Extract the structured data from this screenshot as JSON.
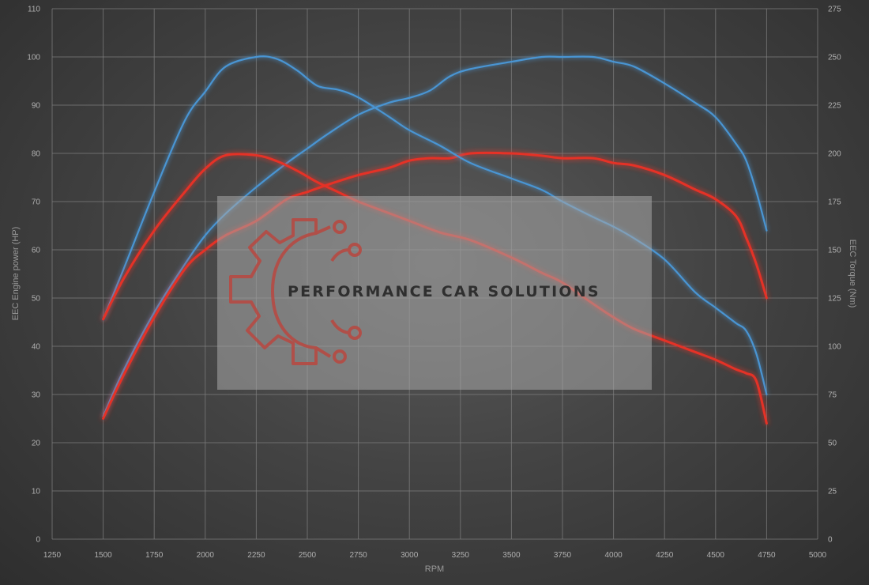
{
  "chart_data": {
    "type": "line",
    "xlabel": "RPM",
    "ylabel_left": "EEC Engine power (HP)",
    "ylabel_right": "EEC Torque (Nm)",
    "xlim": [
      1250,
      5000
    ],
    "ylim_left": [
      0,
      110
    ],
    "ylim_right": [
      0,
      275
    ],
    "x_ticks": [
      "1250",
      "1500",
      "1750",
      "2000",
      "2250",
      "2500",
      "2750",
      "3000",
      "3250",
      "3500",
      "3750",
      "4000",
      "4250",
      "4500",
      "4750",
      "5000"
    ],
    "y_left_ticks": [
      "0",
      "10",
      "20",
      "30",
      "40",
      "50",
      "60",
      "70",
      "80",
      "90",
      "100",
      "110"
    ],
    "y_right_ticks": [
      "0",
      "25",
      "50",
      "75",
      "100",
      "125",
      "150",
      "175",
      "200",
      "225",
      "250",
      "275"
    ],
    "grid": true,
    "series": [
      {
        "axis": "left",
        "color": "#4a95d3",
        "x": [
          1500,
          1600,
          1750,
          1900,
          2000,
          2100,
          2250,
          2400,
          2500,
          2600,
          2750,
          2900,
          3000,
          3100,
          3200,
          3300,
          3500,
          3650,
          3750,
          3900,
          4000,
          4100,
          4250,
          4400,
          4500,
          4600,
          4650,
          4700,
          4750
        ],
        "values": [
          25.5,
          35,
          47,
          57,
          63,
          67.5,
          73,
          78,
          81,
          84,
          88,
          90.5,
          91.5,
          93,
          96,
          97.5,
          99,
          100,
          100,
          100,
          99,
          98,
          94.5,
          90.5,
          87.5,
          82,
          78.5,
          72,
          64
        ]
      },
      {
        "axis": "left",
        "color": "#e53028",
        "x": [
          1500,
          1600,
          1750,
          1900,
          2000,
          2100,
          2250,
          2400,
          2500,
          2600,
          2750,
          2900,
          3000,
          3100,
          3200,
          3300,
          3500,
          3650,
          3750,
          3900,
          4000,
          4100,
          4250,
          4400,
          4500,
          4600,
          4650,
          4700,
          4750
        ],
        "values": [
          25,
          34,
          46,
          56,
          60,
          63,
          66,
          70.5,
          72,
          73.5,
          75.5,
          77,
          78.5,
          79,
          79,
          80,
          80,
          79.5,
          79,
          79,
          78,
          77.5,
          75.5,
          72.5,
          70.5,
          67,
          62.5,
          57,
          50
        ]
      },
      {
        "axis": "right",
        "color": "#4a95d3",
        "x": [
          1500,
          1600,
          1750,
          1900,
          2000,
          2100,
          2250,
          2350,
          2450,
          2550,
          2650,
          2750,
          2900,
          3000,
          3150,
          3300,
          3500,
          3650,
          3750,
          3900,
          4000,
          4100,
          4250,
          4400,
          4500,
          4600,
          4650,
          4700,
          4750
        ],
        "values": [
          114,
          140,
          180,
          217,
          232,
          245,
          250,
          249,
          243,
          235,
          233,
          229,
          219,
          212,
          204,
          195,
          187,
          181,
          175,
          167,
          162,
          156,
          145,
          128,
          120,
          112,
          108,
          96,
          75
        ]
      },
      {
        "axis": "right",
        "color": "#e53028",
        "x": [
          1500,
          1600,
          1750,
          1900,
          2000,
          2100,
          2250,
          2350,
          2450,
          2550,
          2650,
          2750,
          2900,
          3000,
          3150,
          3300,
          3500,
          3650,
          3750,
          3900,
          4000,
          4100,
          4250,
          4400,
          4500,
          4600,
          4650,
          4700,
          4750
        ],
        "values": [
          114,
          135,
          160,
          180,
          192,
          199,
          199,
          196,
          191,
          185,
          180,
          175,
          169,
          165,
          159,
          155,
          146,
          138,
          133,
          122,
          115,
          109,
          103,
          97,
          93,
          88,
          86,
          82,
          60
        ]
      }
    ]
  },
  "watermark": {
    "text": "PERFORMANCE CAR SOLUTIONS",
    "logo_icon": "gear-circuit-icon",
    "logo_color": "#b9473f"
  }
}
